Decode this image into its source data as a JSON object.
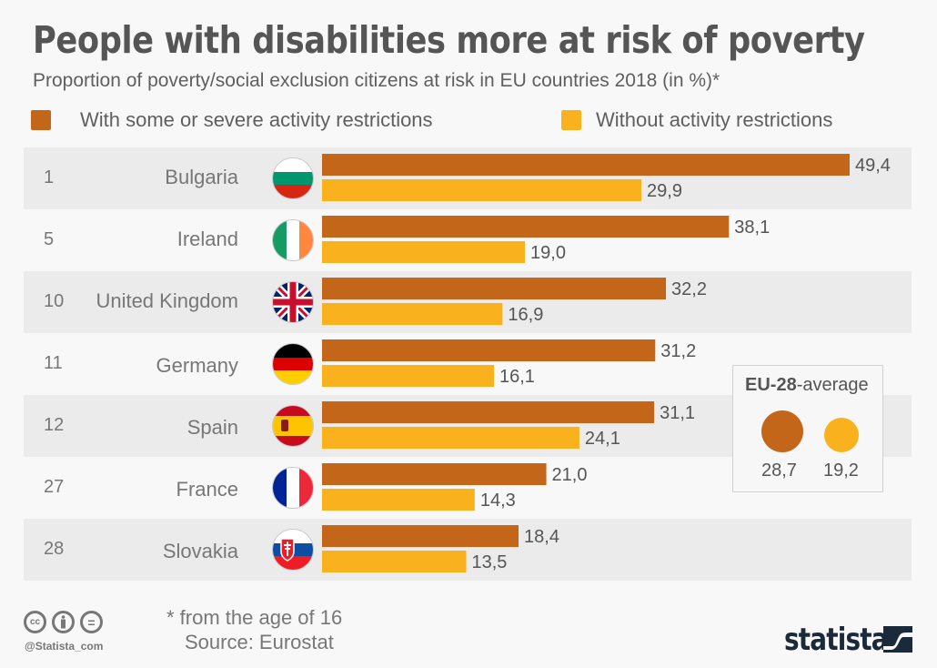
{
  "header": {
    "title": "People with disabilities more at risk of poverty",
    "subtitle": "Proportion of poverty/social exclusion citizens at risk in EU countries 2018 (in %)*"
  },
  "colors": {
    "with_restrictions": "#c4661a",
    "without_restrictions": "#fab11e",
    "row_shade": "#ebebeb",
    "brand_dark": "#1b2a3a"
  },
  "chart_data": {
    "type": "bar",
    "orientation": "horizontal",
    "title": "People with disabilities more at risk of poverty",
    "subtitle": "Proportion of poverty/social exclusion citizens at risk in EU countries 2018 (in %)*",
    "xlabel": "",
    "ylabel": "",
    "xlim": [
      0,
      50
    ],
    "grid": false,
    "legend_position": "top",
    "categories": [
      "Bulgaria",
      "Ireland",
      "United Kingdom",
      "Germany",
      "Spain",
      "France",
      "Slovakia"
    ],
    "ranks": [
      "1",
      "5",
      "10",
      "11",
      "12",
      "27",
      "28"
    ],
    "flags": [
      "flag-bulgaria",
      "flag-ireland",
      "flag-united-kingdom",
      "flag-germany",
      "flag-spain",
      "flag-france",
      "flag-slovakia"
    ],
    "series": [
      {
        "name": "With some or severe activity restrictions",
        "color": "#c4661a",
        "values": [
          49.4,
          38.1,
          32.2,
          31.2,
          31.1,
          21.0,
          18.4
        ],
        "labels": [
          "49,4",
          "38,1",
          "32,2",
          "31,2",
          "31,1",
          "21,0",
          "18,4"
        ]
      },
      {
        "name": "Without activity restrictions",
        "color": "#fab11e",
        "values": [
          29.9,
          19.0,
          16.9,
          16.1,
          24.1,
          14.3,
          13.5
        ],
        "labels": [
          "29,9",
          "19,0",
          "16,9",
          "16,1",
          "24,1",
          "14,3",
          "13,5"
        ]
      }
    ],
    "annotations": {
      "eu_average": {
        "title_bold": "EU-28",
        "title_rest": "-average",
        "with_restrictions": 28.7,
        "with_restrictions_label": "28,7",
        "without_restrictions": 19.2,
        "without_restrictions_label": "19,2"
      }
    }
  },
  "footer": {
    "note": "* from the age of 16",
    "source": "Source: Eurostat",
    "handle": "@Statista_com",
    "license_icons": [
      "cc-icon",
      "by-icon",
      "nd-icon"
    ],
    "cc_label": "cc",
    "nd_label": "=",
    "brand": "statista"
  }
}
